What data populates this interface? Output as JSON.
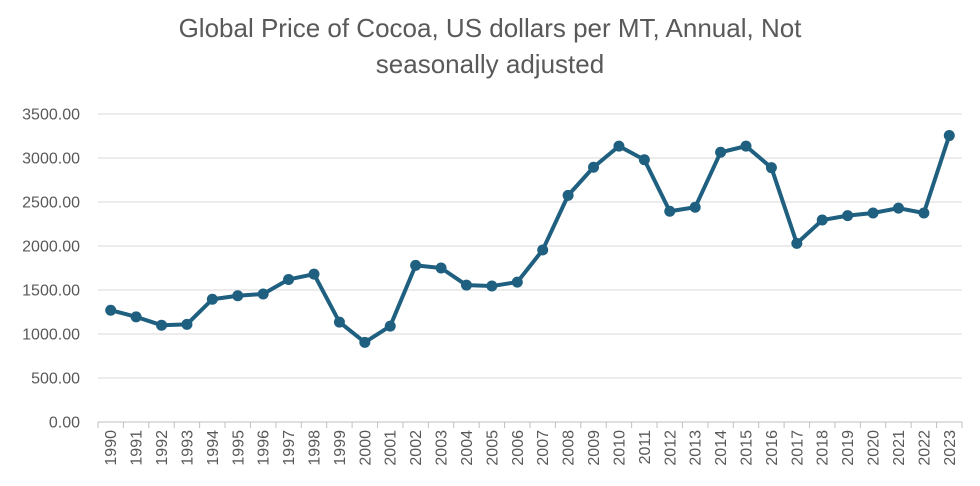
{
  "chart_data": {
    "type": "line",
    "title_lines": [
      "Global Price of Cocoa, US dollars per MT, Annual, Not",
      "seasonally adjusted"
    ],
    "xlabel": "",
    "ylabel": "",
    "ylim": [
      0,
      3500
    ],
    "y_ticks": [
      "0.00",
      "500.00",
      "1000.00",
      "1500.00",
      "2000.00",
      "2500.00",
      "3000.00",
      "3500.00"
    ],
    "y_tick_values": [
      0,
      500,
      1000,
      1500,
      2000,
      2500,
      3000,
      3500
    ],
    "grid": true,
    "categories": [
      "1990",
      "1991",
      "1992",
      "1993",
      "1994",
      "1995",
      "1996",
      "1997",
      "1998",
      "1999",
      "2000",
      "2001",
      "2002",
      "2003",
      "2004",
      "2005",
      "2006",
      "2007",
      "2008",
      "2009",
      "2010",
      "2011",
      "2012",
      "2013",
      "2014",
      "2015",
      "2016",
      "2017",
      "2018",
      "2019",
      "2020",
      "2021",
      "2022",
      "2023"
    ],
    "series": [
      {
        "name": "Global Price of Cocoa",
        "color": "#1f5f7f",
        "values": [
          1270,
          1195,
          1100,
          1110,
          1395,
          1435,
          1455,
          1620,
          1680,
          1135,
          905,
          1090,
          1780,
          1750,
          1555,
          1545,
          1590,
          1955,
          2575,
          2895,
          3135,
          2980,
          2395,
          2440,
          3065,
          3135,
          2890,
          2030,
          2295,
          2345,
          2375,
          2430,
          2375,
          3255
        ]
      }
    ]
  }
}
